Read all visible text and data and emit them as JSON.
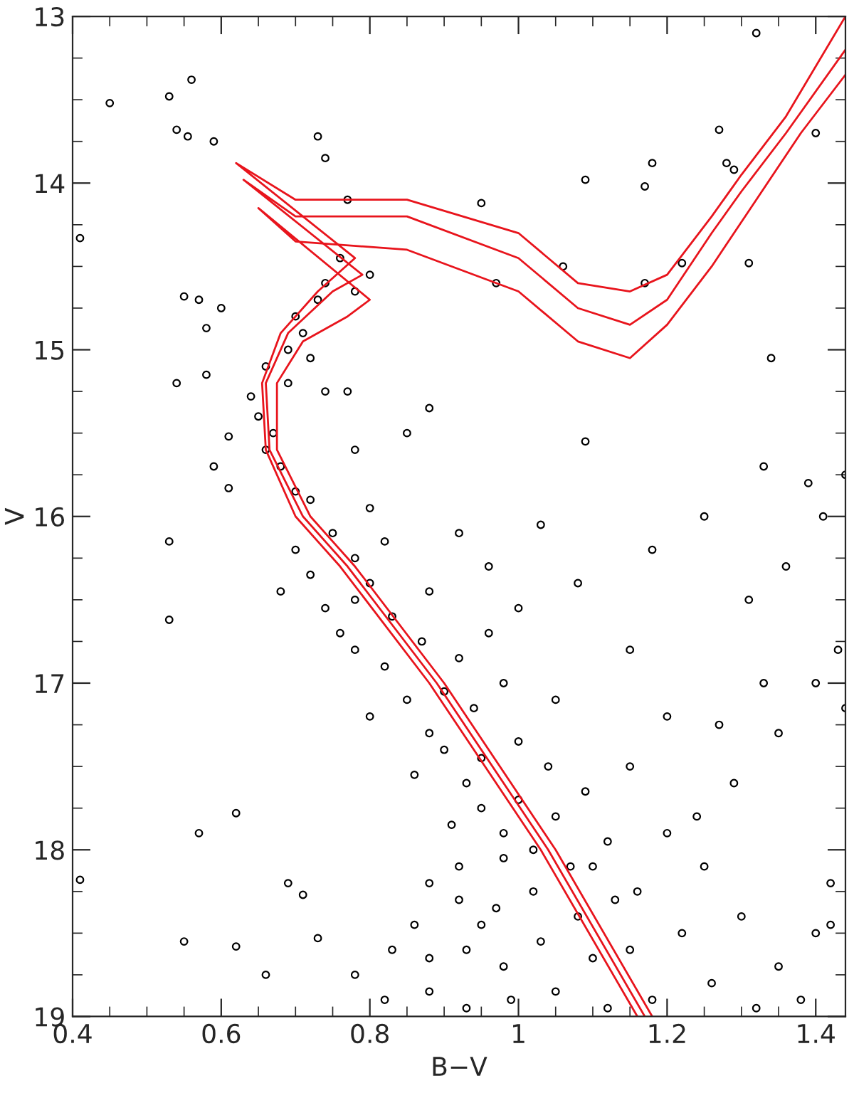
{
  "chart_data": {
    "type": "scatter",
    "xlabel": "B−V",
    "ylabel": "V",
    "xlim": [
      0.4,
      1.44
    ],
    "ylim": [
      19,
      13
    ],
    "xticks": [
      0.4,
      0.6,
      0.8,
      1,
      1.2,
      1.4
    ],
    "yticks": [
      13,
      14,
      15,
      16,
      17,
      18,
      19
    ],
    "grid": false,
    "legend": false,
    "series": [
      {
        "color": "#000000",
        "marker": "circle",
        "x": [
          0.45,
          0.53,
          0.54,
          0.56,
          0.555,
          0.59,
          0.41,
          0.73,
          0.74,
          0.77,
          0.95,
          1.09,
          1.17,
          1.18,
          1.27,
          1.28,
          1.29,
          1.32,
          1.4,
          1.06,
          0.97,
          1.17,
          1.22,
          1.34,
          1.31,
          0.74,
          0.76,
          0.8,
          0.78,
          0.73,
          0.7,
          0.71,
          0.69,
          0.66,
          0.64,
          0.65,
          0.67,
          0.69,
          0.72,
          0.74,
          0.68,
          0.7,
          0.72,
          0.66,
          0.6,
          0.57,
          0.55,
          0.58,
          0.58,
          0.54,
          0.61,
          0.59,
          0.61,
          0.53,
          0.53,
          0.57,
          0.55,
          0.62,
          0.62,
          0.66,
          0.69,
          0.71,
          0.73,
          0.41,
          0.7,
          0.75,
          0.78,
          0.82,
          0.72,
          0.74,
          0.78,
          0.83,
          0.88,
          0.68,
          0.8,
          0.78,
          0.82,
          0.87,
          0.92,
          0.76,
          0.96,
          0.85,
          0.9,
          0.94,
          0.98,
          0.8,
          0.88,
          0.9,
          0.95,
          1.0,
          1.04,
          0.86,
          0.93,
          0.95,
          1.0,
          1.05,
          1.09,
          0.91,
          0.98,
          0.98,
          1.02,
          1.07,
          1.12,
          0.92,
          0.88,
          0.92,
          0.97,
          1.02,
          1.08,
          1.13,
          0.86,
          0.95,
          0.88,
          0.93,
          0.98,
          1.03,
          1.1,
          1.15,
          0.83,
          0.78,
          0.82,
          0.88,
          0.93,
          0.99,
          1.05,
          1.12,
          1.18,
          1.2,
          1.25,
          1.3,
          1.35,
          1.4,
          1.42,
          1.26,
          1.32,
          1.38,
          1.22,
          1.29,
          1.35,
          1.4,
          1.43,
          1.31,
          1.36,
          1.41,
          1.39,
          1.33,
          1.25,
          1.18,
          1.09,
          1.2,
          1.27,
          1.33,
          1.44,
          1.44,
          1.15,
          1.1,
          1.15,
          1.05,
          1.42,
          1.16,
          1.24,
          0.85,
          0.88,
          0.78,
          0.8,
          0.77,
          0.92,
          0.96,
          1.03,
          1.0,
          1.08
        ],
        "values": [
          13.52,
          13.48,
          13.68,
          13.38,
          13.72,
          13.75,
          14.33,
          13.72,
          13.85,
          14.1,
          14.12,
          13.98,
          14.02,
          13.88,
          13.68,
          13.88,
          13.92,
          13.1,
          13.7,
          14.5,
          14.6,
          14.6,
          14.48,
          15.05,
          14.48,
          14.6,
          14.45,
          14.55,
          14.65,
          14.7,
          14.8,
          14.9,
          15.0,
          15.1,
          15.28,
          15.4,
          15.5,
          15.2,
          15.05,
          15.25,
          15.7,
          15.85,
          15.9,
          15.6,
          14.75,
          14.7,
          14.68,
          14.87,
          15.15,
          15.2,
          15.52,
          15.7,
          15.83,
          16.15,
          16.62,
          17.9,
          18.55,
          17.78,
          18.58,
          18.75,
          18.2,
          18.27,
          18.53,
          18.18,
          16.2,
          16.1,
          16.25,
          16.15,
          16.35,
          16.55,
          16.5,
          16.6,
          16.45,
          16.45,
          16.4,
          16.8,
          16.9,
          16.75,
          16.85,
          16.7,
          16.7,
          17.1,
          17.05,
          17.15,
          17.0,
          17.2,
          17.3,
          17.4,
          17.45,
          17.35,
          17.5,
          17.55,
          17.6,
          17.75,
          17.7,
          17.8,
          17.65,
          17.85,
          17.9,
          18.05,
          18.0,
          18.1,
          17.95,
          18.1,
          18.2,
          18.3,
          18.35,
          18.25,
          18.4,
          18.3,
          18.45,
          18.45,
          18.65,
          18.6,
          18.7,
          18.55,
          18.65,
          18.6,
          18.6,
          18.75,
          18.9,
          18.85,
          18.95,
          18.9,
          18.85,
          18.95,
          18.9,
          17.9,
          18.1,
          18.4,
          18.7,
          18.5,
          18.2,
          18.8,
          18.95,
          18.9,
          18.5,
          17.6,
          17.3,
          17.0,
          16.8,
          16.5,
          16.3,
          16.0,
          15.8,
          15.7,
          16.0,
          16.2,
          15.55,
          17.2,
          17.25,
          17.0,
          15.75,
          17.15,
          17.5,
          18.1,
          16.8,
          17.1,
          18.45,
          18.25,
          17.8,
          15.5,
          15.35,
          15.6,
          15.95,
          15.25,
          16.1,
          16.3,
          16.05,
          16.55,
          16.4
        ]
      },
      {
        "type": "line",
        "color": "#e8141c",
        "marker": "none",
        "line_style": "solid",
        "x": [
          1.16,
          1.03,
          0.88,
          0.76,
          0.7,
          0.66,
          0.655,
          0.68,
          0.73,
          0.78,
          0.62,
          0.7,
          0.85,
          1.0,
          1.08,
          1.15,
          1.2,
          1.26,
          1.3,
          1.36,
          1.44
        ],
        "values": [
          19.0,
          18.0,
          17.0,
          16.3,
          16.0,
          15.6,
          15.2,
          14.9,
          14.65,
          14.45,
          13.88,
          14.1,
          14.1,
          14.3,
          14.6,
          14.65,
          14.55,
          14.2,
          13.95,
          13.6,
          13.0
        ]
      },
      {
        "type": "line",
        "color": "#e8141c",
        "marker": "none",
        "line_style": "solid",
        "x": [
          1.17,
          1.04,
          0.89,
          0.77,
          0.71,
          0.665,
          0.66,
          0.69,
          0.75,
          0.79,
          0.63,
          0.7,
          0.85,
          1.0,
          1.08,
          1.15,
          1.2,
          1.26,
          1.3,
          1.36,
          1.44
        ],
        "values": [
          19.0,
          18.0,
          17.0,
          16.3,
          16.0,
          15.6,
          15.2,
          14.9,
          14.65,
          14.55,
          13.98,
          14.2,
          14.2,
          14.45,
          14.75,
          14.85,
          14.7,
          14.3,
          14.05,
          13.7,
          13.2
        ]
      },
      {
        "type": "line",
        "color": "#e8141c",
        "marker": "none",
        "line_style": "solid",
        "x": [
          1.18,
          1.05,
          0.9,
          0.78,
          0.72,
          0.675,
          0.675,
          0.71,
          0.77,
          0.8,
          0.65,
          0.7,
          0.85,
          1.0,
          1.08,
          1.15,
          1.2,
          1.26,
          1.32,
          1.38,
          1.44
        ],
        "values": [
          19.0,
          18.0,
          17.0,
          16.3,
          16.0,
          15.6,
          15.2,
          14.95,
          14.8,
          14.7,
          14.15,
          14.35,
          14.4,
          14.65,
          14.95,
          15.05,
          14.85,
          14.5,
          14.1,
          13.7,
          13.35
        ]
      }
    ]
  }
}
